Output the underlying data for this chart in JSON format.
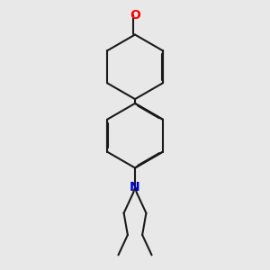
{
  "bg_color": "#e8e8e8",
  "bond_color": "#1a1a1a",
  "oxygen_color": "#ff0000",
  "nitrogen_color": "#0000cd",
  "line_width": 1.5,
  "dbo": 0.018,
  "figsize": [
    3.0,
    3.0
  ],
  "dpi": 100
}
